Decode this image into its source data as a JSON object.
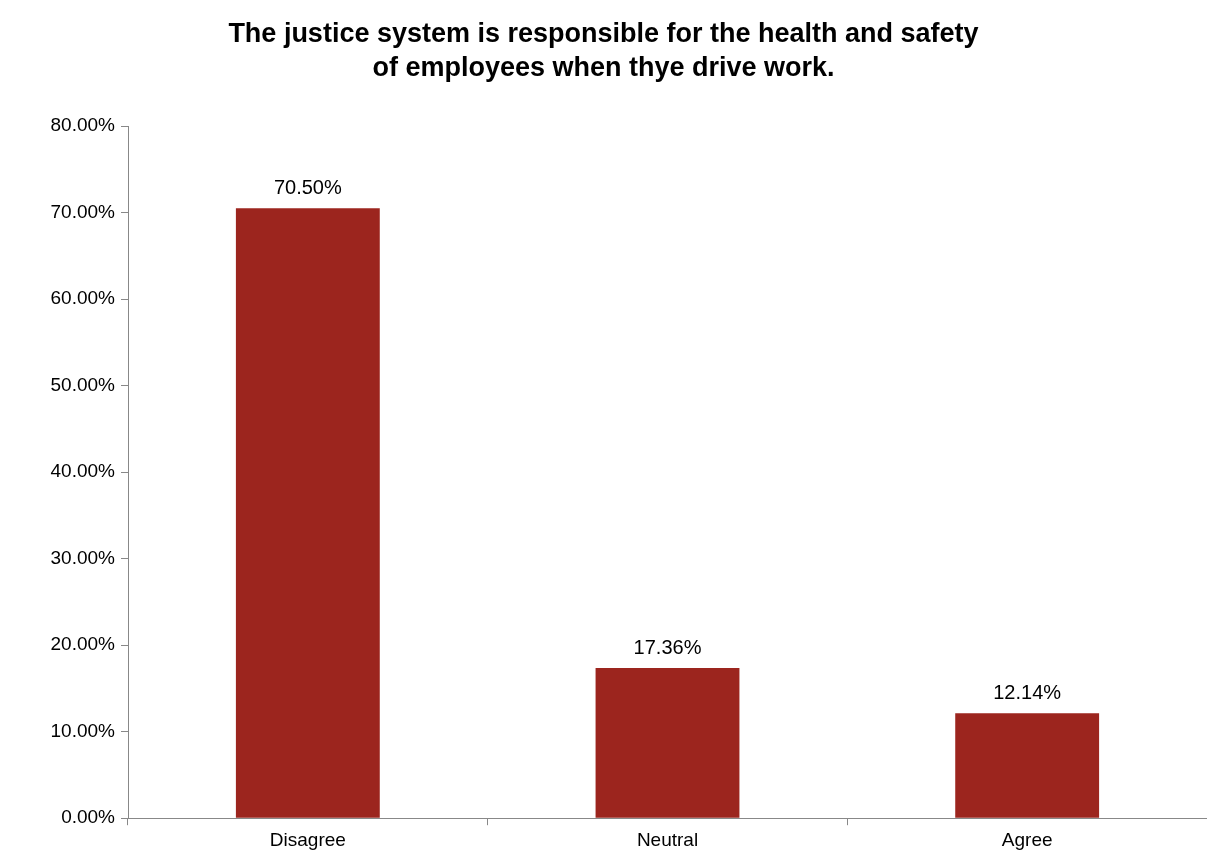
{
  "chart_data": {
    "type": "bar",
    "title": "The justice system is responsible for the health and safety of employees when thye drive work.",
    "categories": [
      "Disagree",
      "Neutral",
      "Agree"
    ],
    "values": [
      70.5,
      17.36,
      12.14
    ],
    "color": "#9c251e",
    "value_labels": [
      "70.50%",
      "17.36%",
      "12.14%"
    ],
    "ylim": [
      0,
      80
    ],
    "yticks": [
      {
        "value": 0,
        "label": "0.00%"
      },
      {
        "value": 10,
        "label": "10.00%"
      },
      {
        "value": 20,
        "label": "20.00%"
      },
      {
        "value": 30,
        "label": "30.00%"
      },
      {
        "value": 40,
        "label": "40.00%"
      },
      {
        "value": 50,
        "label": "50.00%"
      },
      {
        "value": 60,
        "label": "60.00%"
      },
      {
        "value": 70,
        "label": "70.00%"
      },
      {
        "value": 80,
        "label": "80.00%"
      }
    ]
  }
}
